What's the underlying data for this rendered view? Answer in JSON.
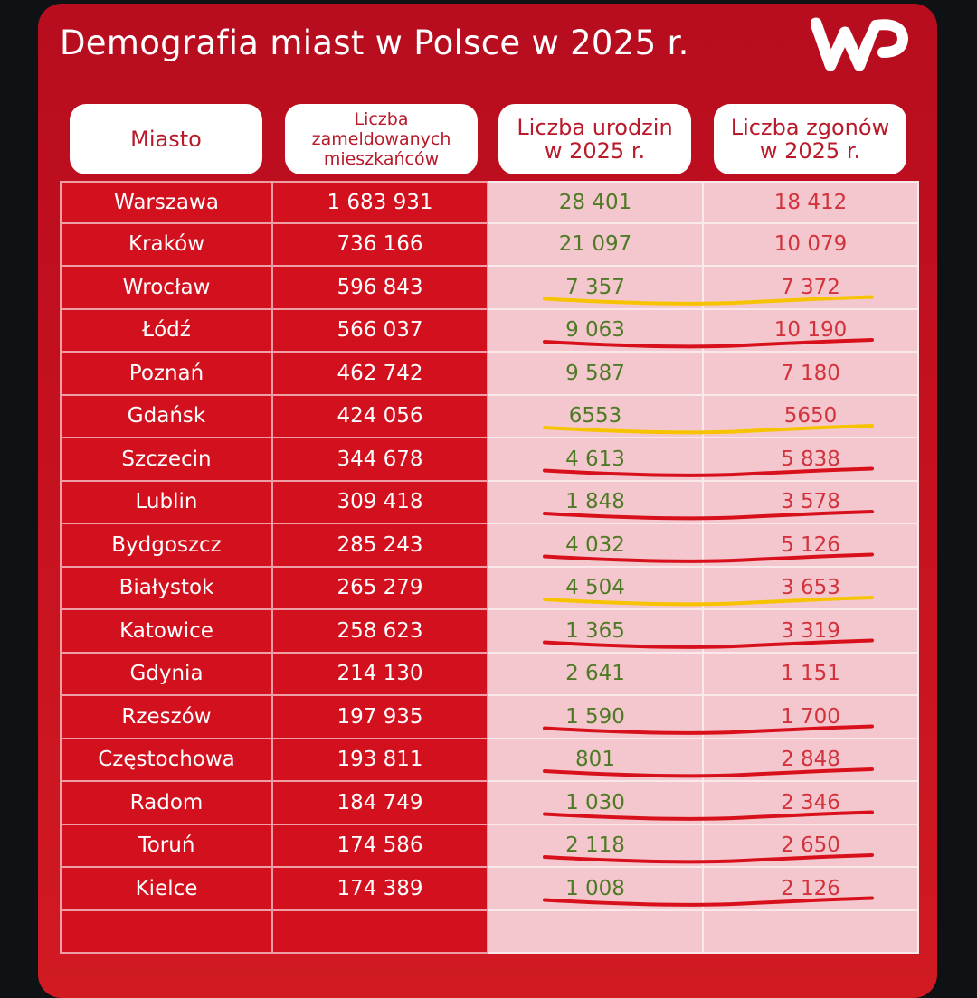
{
  "title": "Demografia miast w Polsce w 2025 r.",
  "logo_text": "WP",
  "colors": {
    "card": "#c4101f",
    "births_text": "#4e7a25",
    "deaths_text": "#d2323c",
    "yellow_mark": "#f7c300",
    "red_mark": "#d8101c"
  },
  "chart_data": {
    "type": "table",
    "columns": [
      "Miasto",
      "Liczba zameldowanych mieszkańców",
      "Liczba urodzin w 2025 r.",
      "Liczba zgonów w 2025 r."
    ],
    "rows": [
      {
        "city": "Warszawa",
        "population": "1 683 931",
        "births": "28 401",
        "deaths": "18 412",
        "underline": ""
      },
      {
        "city": "Kraków",
        "population": "736 166",
        "births": "21 097",
        "deaths": "10 079",
        "underline": ""
      },
      {
        "city": "Wrocław",
        "population": "596 843",
        "births": "7 357",
        "deaths": "7 372",
        "underline": "yellow"
      },
      {
        "city": "Łódź",
        "population": "566 037",
        "births": "9 063",
        "deaths": "10 190",
        "underline": "red"
      },
      {
        "city": "Poznań",
        "population": "462 742",
        "births": "9 587",
        "deaths": "7 180",
        "underline": ""
      },
      {
        "city": "Gdańsk",
        "population": "424 056",
        "births": "6553",
        "deaths": "5650",
        "underline": "yellow"
      },
      {
        "city": "Szczecin",
        "population": "344 678",
        "births": "4 613",
        "deaths": "5 838",
        "underline": "red"
      },
      {
        "city": "Lublin",
        "population": "309 418",
        "births": "1 848",
        "deaths": "3 578",
        "underline": "red"
      },
      {
        "city": "Bydgoszcz",
        "population": "285 243",
        "births": "4 032",
        "deaths": "5 126",
        "underline": "red"
      },
      {
        "city": "Białystok",
        "population": "265 279",
        "births": "4 504",
        "deaths": "3 653",
        "underline": "yellow"
      },
      {
        "city": "Katowice",
        "population": "258 623",
        "births": "1 365",
        "deaths": "3 319",
        "underline": "red"
      },
      {
        "city": "Gdynia",
        "population": "214 130",
        "births": "2 641",
        "deaths": "1 151",
        "underline": ""
      },
      {
        "city": "Rzeszów",
        "population": "197 935",
        "births": "1 590",
        "deaths": "1 700",
        "underline": "red"
      },
      {
        "city": "Częstochowa",
        "population": "193 811",
        "births": "801",
        "deaths": "2 848",
        "underline": "red"
      },
      {
        "city": "Radom",
        "population": "184 749",
        "births": "1 030",
        "deaths": "2 346",
        "underline": "red"
      },
      {
        "city": "Toruń",
        "population": "174 586",
        "births": "2 118",
        "deaths": "2 650",
        "underline": "red"
      },
      {
        "city": "Kielce",
        "population": "174 389",
        "births": "1 008",
        "deaths": "2 126",
        "underline": "red"
      }
    ]
  }
}
